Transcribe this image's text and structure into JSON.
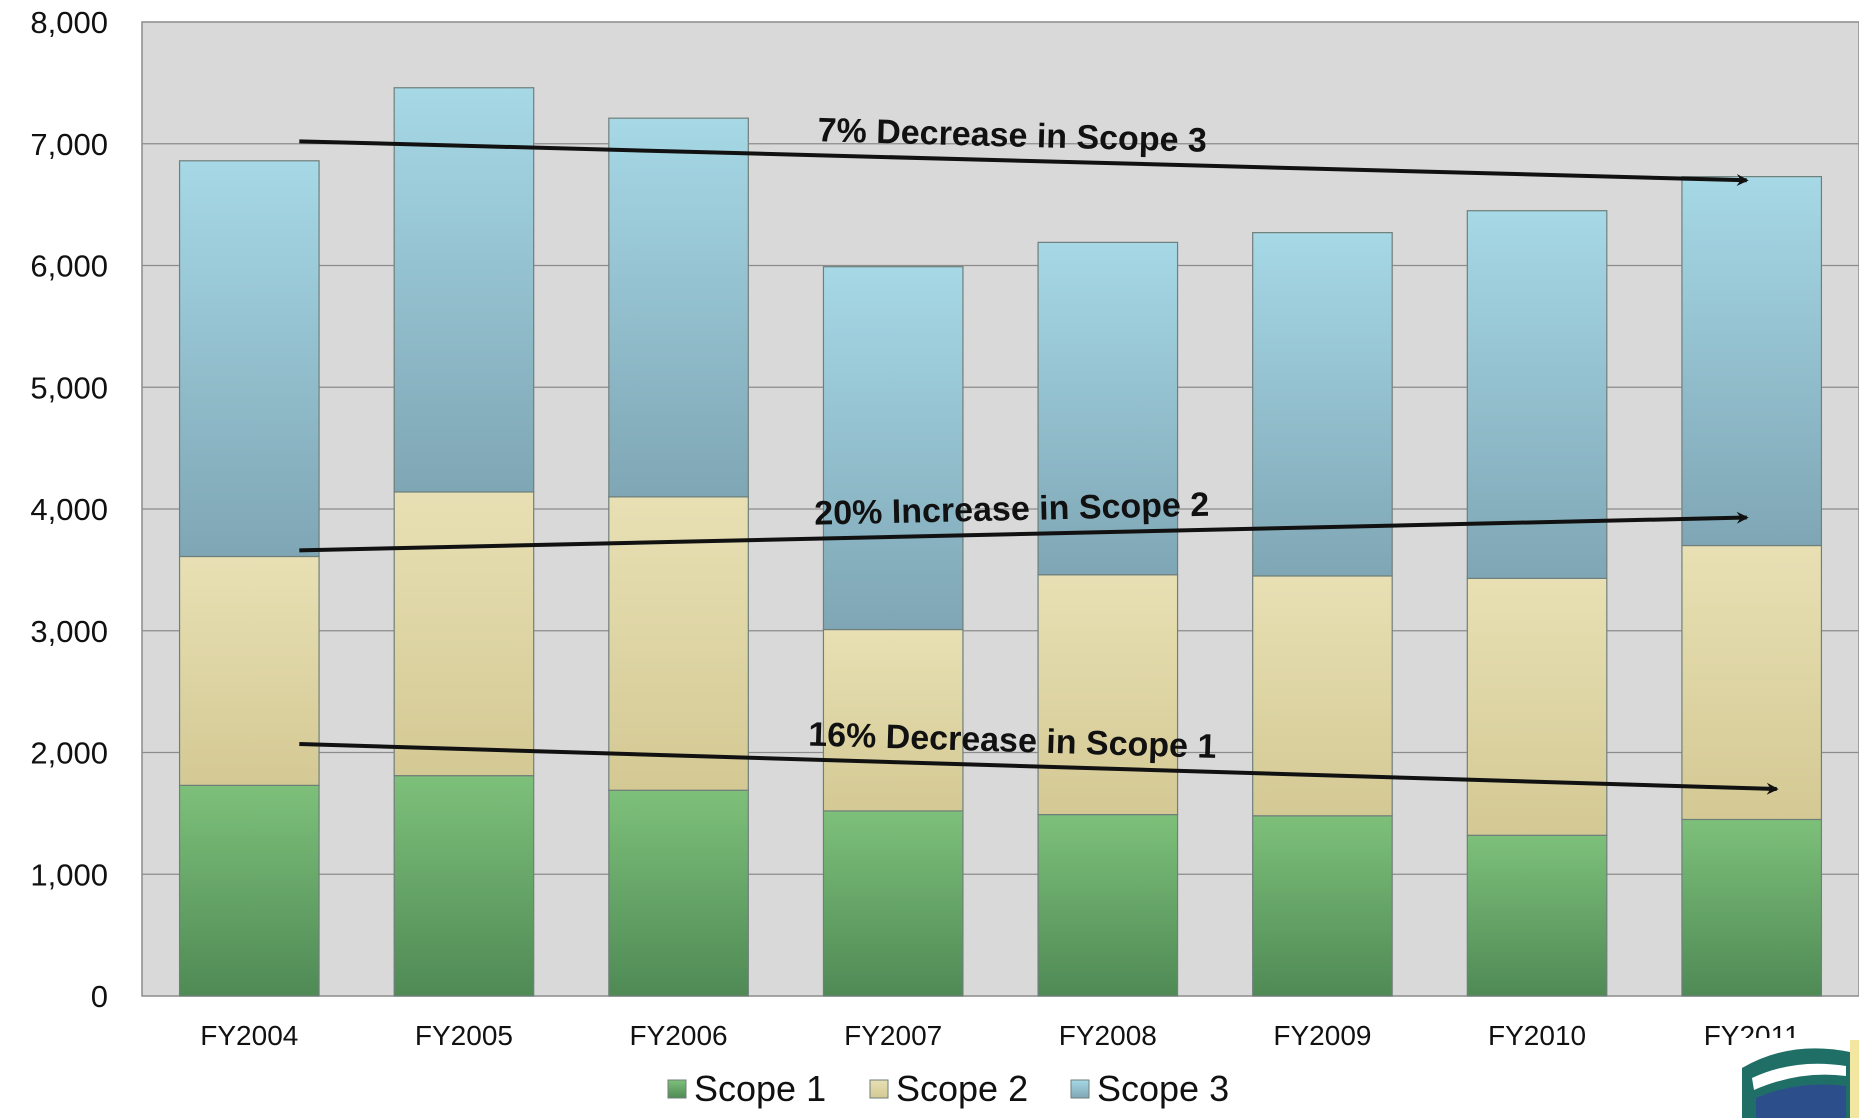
{
  "chart_data": {
    "type": "bar",
    "stacked": true,
    "categories": [
      "FY2004",
      "FY2005",
      "FY2006",
      "FY2007",
      "FY2008",
      "FY2009",
      "FY2010",
      "FY2011"
    ],
    "series": [
      {
        "name": "Scope 1",
        "color": "#6aab6a",
        "values": [
          1730,
          1810,
          1690,
          1520,
          1490,
          1480,
          1320,
          1450
        ]
      },
      {
        "name": "Scope 2",
        "color": "#ddd3a0",
        "values": [
          1880,
          2330,
          2410,
          1490,
          1970,
          1970,
          2110,
          2250
        ]
      },
      {
        "name": "Scope 3",
        "color": "#8fbfd0",
        "values": [
          3250,
          3320,
          3110,
          2980,
          2730,
          2820,
          3020,
          3030
        ]
      }
    ],
    "ylim": [
      0,
      8000
    ],
    "yticks": [
      "0",
      "1,000",
      "2,000",
      "3,000",
      "4,000",
      "5,000",
      "6,000",
      "7,000",
      "8,000"
    ],
    "grid": true,
    "plot_background": "#d9d9d9",
    "legend_position": "bottom",
    "annotations": [
      {
        "text": "7% Decrease in Scope 3",
        "from": [
          "FY2004",
          7020
        ],
        "to": [
          "FY2011",
          6700
        ]
      },
      {
        "text": "20% Increase in Scope 2",
        "from": [
          "FY2004",
          3660
        ],
        "to": [
          "FY2011",
          3930
        ]
      },
      {
        "text": "16% Decrease in Scope 1",
        "from": [
          "FY2004",
          2070
        ],
        "to": [
          "FY2011",
          1700
        ]
      }
    ]
  }
}
